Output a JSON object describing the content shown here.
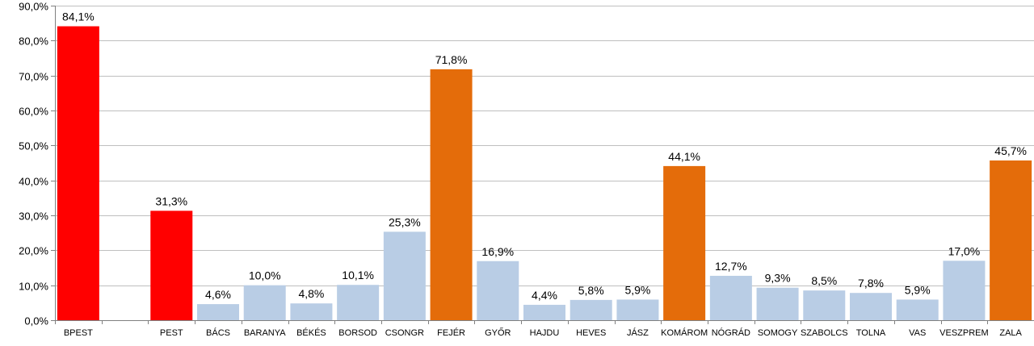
{
  "chart_data": {
    "type": "bar",
    "categories": [
      "BPEST",
      "",
      "PEST",
      "BÁCS",
      "BARANYA",
      "BÉKÉS",
      "BORSOD",
      "CSONGR",
      "FEJÉR",
      "GYŐR",
      "HAJDU",
      "HEVES",
      "JÁSZ",
      "KOMÁROM",
      "NÓGRÁD",
      "SOMOGY",
      "SZABOLCS",
      "TOLNA",
      "VAS",
      "VESZPREM",
      "ZALA"
    ],
    "values": [
      84.1,
      null,
      31.3,
      4.6,
      10.0,
      4.8,
      10.1,
      25.3,
      71.8,
      16.9,
      4.4,
      5.8,
      5.9,
      44.1,
      12.7,
      9.3,
      8.5,
      7.8,
      5.9,
      17.0,
      45.7
    ],
    "data_labels": [
      "84,1%",
      "",
      "31,3%",
      "4,6%",
      "10,0%",
      "4,8%",
      "10,1%",
      "25,3%",
      "71,8%",
      "16,9%",
      "4,4%",
      "5,8%",
      "5,9%",
      "44,1%",
      "12,7%",
      "9,3%",
      "8,5%",
      "7,8%",
      "5,9%",
      "17,0%",
      "45,7%"
    ],
    "bar_colors": [
      "#ff0000",
      null,
      "#ff0000",
      "#b9cde5",
      "#b9cde5",
      "#b9cde5",
      "#b9cde5",
      "#b9cde5",
      "#e46c0a",
      "#b9cde5",
      "#b9cde5",
      "#b9cde5",
      "#b9cde5",
      "#e46c0a",
      "#b9cde5",
      "#b9cde5",
      "#b9cde5",
      "#b9cde5",
      "#b9cde5",
      "#b9cde5",
      "#e46c0a"
    ],
    "ylim": [
      0,
      90
    ],
    "y_ticks": [
      0,
      10,
      20,
      30,
      40,
      50,
      60,
      70,
      80,
      90
    ],
    "y_tick_labels": [
      "0,0%",
      "10,0%",
      "20,0%",
      "30,0%",
      "40,0%",
      "50,0%",
      "60,0%",
      "70,0%",
      "80,0%",
      "90,0%"
    ],
    "title": "",
    "xlabel": "",
    "ylabel": "",
    "grid": true,
    "legend": "none"
  }
}
